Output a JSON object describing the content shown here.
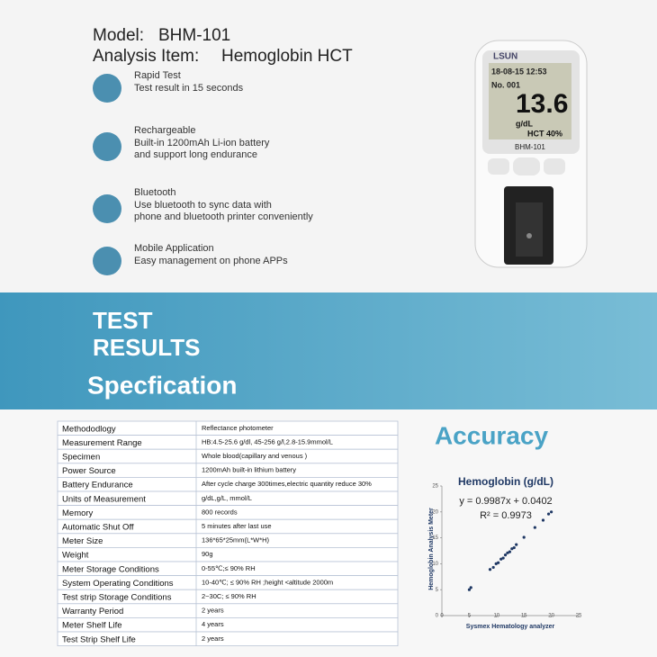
{
  "header": {
    "model_label": "Model:",
    "model": "BHM-101",
    "analysis_label": "Analysis Item:",
    "analysis": "Hemoglobin HCT"
  },
  "features": [
    {
      "title": "Rapid Test",
      "desc": [
        "Test result in 15 seconds"
      ]
    },
    {
      "title": "Rechargeable",
      "desc": [
        "Built-in 1200mAh Li-ion battery",
        "and support long endurance"
      ]
    },
    {
      "title": "Bluetooth",
      "desc": [
        "Use bluetooth to sync data with",
        "phone and bluetooth printer conveniently"
      ]
    },
    {
      "title": "Mobile Application",
      "desc": [
        "Easy management on phone APPs"
      ]
    }
  ],
  "device": {
    "brand": "LSUN",
    "datetime": "18-08-15 12:53",
    "number": "No. 001",
    "reading": "13.6",
    "unit": "g/dL",
    "hct": "HCT 40%",
    "model": "BHM-101"
  },
  "banner": {
    "line1": "TEST",
    "line2": "RESULTS",
    "subtitle": "Specfication"
  },
  "table": {
    "rows": [
      [
        "Methododlogy",
        "Reflectance photometer"
      ],
      [
        "Measurement Range",
        "HB:4.5-25.6 g/dl, 45-256 g/l,2.8-15.9mmol/L"
      ],
      [
        "Specimen",
        "Whole blood(capillary and venous )"
      ],
      [
        "Power Source",
        "1200mAh built-in lithium battery"
      ],
      [
        "Battery Endurance",
        "After cycle charge 300times,electric quantity reduce 30%"
      ],
      [
        "Units of Measurement",
        "g/dL,g/L, mmol/L"
      ],
      [
        "Memory",
        "800 records"
      ],
      [
        "Automatic Shut Off",
        "5 minutes  after last use"
      ],
      [
        "Meter Size",
        "136*65*25mm(L*W*H)"
      ],
      [
        "Weight",
        "90g"
      ],
      [
        "Meter Storage Conditions",
        "0-55℃;≤ 90% RH"
      ],
      [
        "System Operating Conditions",
        "10-40℃; ≤ 90% RH ;height <altitude 2000m"
      ],
      [
        "Test strip Storage Conditions",
        "2~30C; ≤ 90% RH"
      ],
      [
        "Warranty Period",
        "2 years"
      ],
      [
        "Meter Shelf Life",
        "4 years"
      ],
      [
        "Test Strip Shelf Life",
        "2 years"
      ]
    ]
  },
  "accuracy": {
    "heading": "Accuracy",
    "chart": {
      "type": "scatter",
      "title": "Hemoglobin (g/dL)",
      "equation": "y = 0.9987x + 0.0402",
      "r2": "R² = 0.9973",
      "x_label": "Sysmex Hematology analyzer",
      "y_label": "Hemoglobin Analysis Meter",
      "color": "#1f3864",
      "x": [
        5,
        5.3,
        8.8,
        9.4,
        9.9,
        10.3,
        10.8,
        11.2,
        11.6,
        12,
        12.4,
        12.8,
        13.2,
        13.6,
        15,
        17,
        18.5,
        19.5,
        20
      ],
      "y": [
        5,
        5.4,
        8.9,
        9.3,
        10,
        10.2,
        10.9,
        11.1,
        11.7,
        12.1,
        12.3,
        12.9,
        13.1,
        13.7,
        15.1,
        17,
        18.4,
        19.6,
        20
      ],
      "xlim": [
        0,
        25
      ],
      "ylim": [
        0,
        25
      ],
      "xticks": [
        0,
        5,
        10,
        15,
        20,
        25
      ],
      "yticks": [
        0,
        5,
        10,
        15,
        20,
        25
      ]
    }
  }
}
